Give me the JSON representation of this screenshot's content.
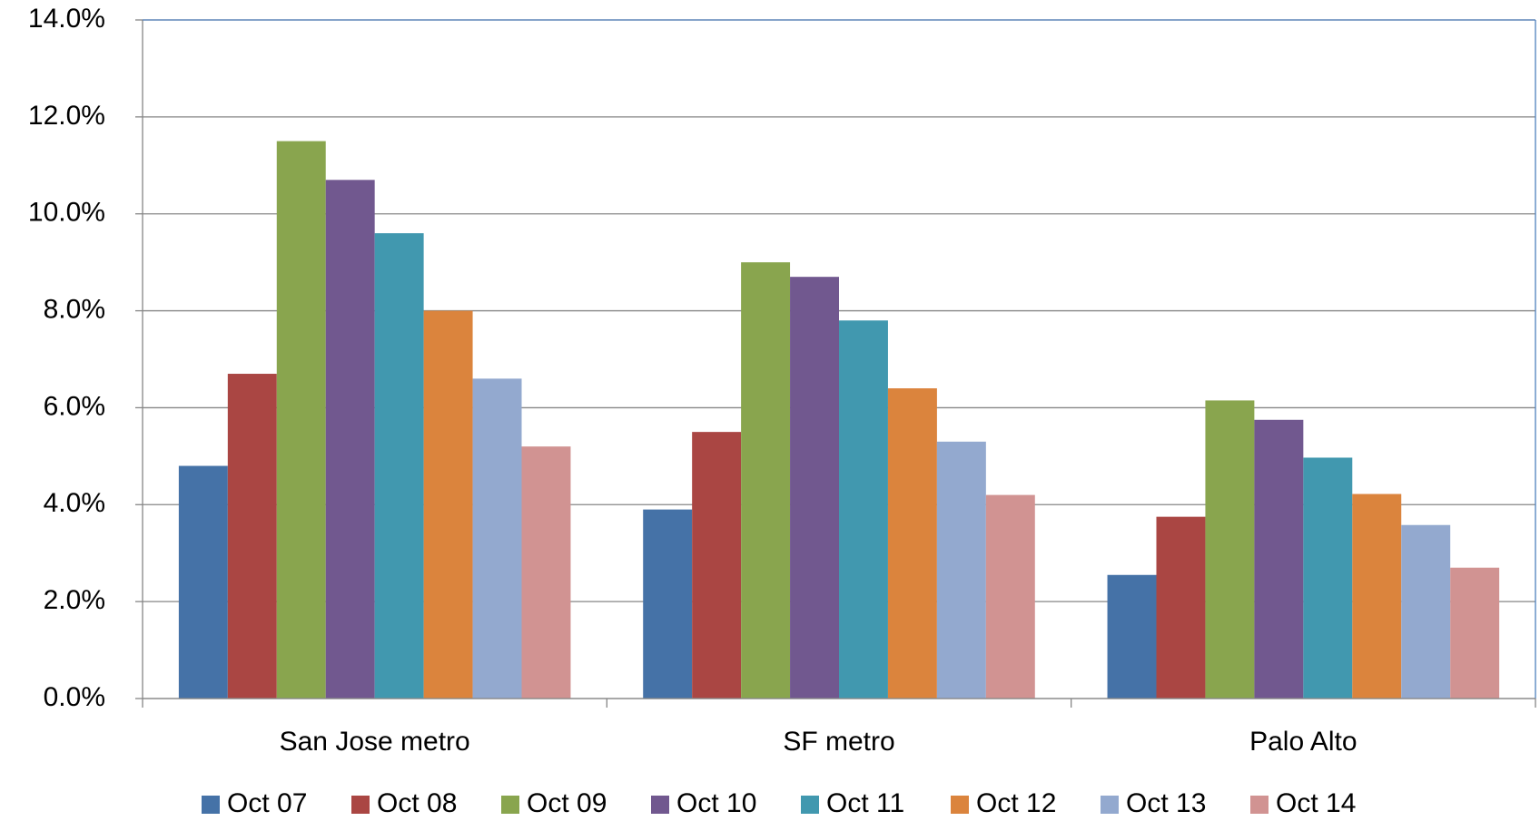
{
  "chart_data": {
    "type": "bar",
    "categories": [
      "San Jose metro",
      "SF metro",
      "Palo Alto"
    ],
    "series": [
      {
        "name": "Oct 07",
        "color": "#4572a7",
        "values": [
          4.8,
          3.9,
          2.55
        ]
      },
      {
        "name": "Oct 08",
        "color": "#aa4643",
        "values": [
          6.7,
          5.5,
          3.75
        ]
      },
      {
        "name": "Oct 09",
        "color": "#89a54e",
        "values": [
          11.5,
          9.0,
          6.15
        ]
      },
      {
        "name": "Oct 10",
        "color": "#71588f",
        "values": [
          10.7,
          8.7,
          5.75
        ]
      },
      {
        "name": "Oct 11",
        "color": "#4198af",
        "values": [
          9.6,
          7.8,
          4.97
        ]
      },
      {
        "name": "Oct 12",
        "color": "#db843d",
        "values": [
          8.0,
          6.4,
          4.22
        ]
      },
      {
        "name": "Oct 13",
        "color": "#93a9cf",
        "values": [
          6.6,
          5.3,
          3.58
        ]
      },
      {
        "name": "Oct 14",
        "color": "#d19392",
        "values": [
          5.2,
          4.2,
          2.7
        ]
      }
    ],
    "ylim": [
      0,
      14
    ],
    "yticks": [
      {
        "value": 0,
        "label": "0.0%"
      },
      {
        "value": 2,
        "label": "2.0%"
      },
      {
        "value": 4,
        "label": "4.0%"
      },
      {
        "value": 6,
        "label": "6.0%"
      },
      {
        "value": 8,
        "label": "8.0%"
      },
      {
        "value": 10,
        "label": "10.0%"
      },
      {
        "value": 12,
        "label": "12.0%"
      },
      {
        "value": 14,
        "label": "14.0%"
      }
    ],
    "grid": true,
    "legend": "bottom"
  }
}
